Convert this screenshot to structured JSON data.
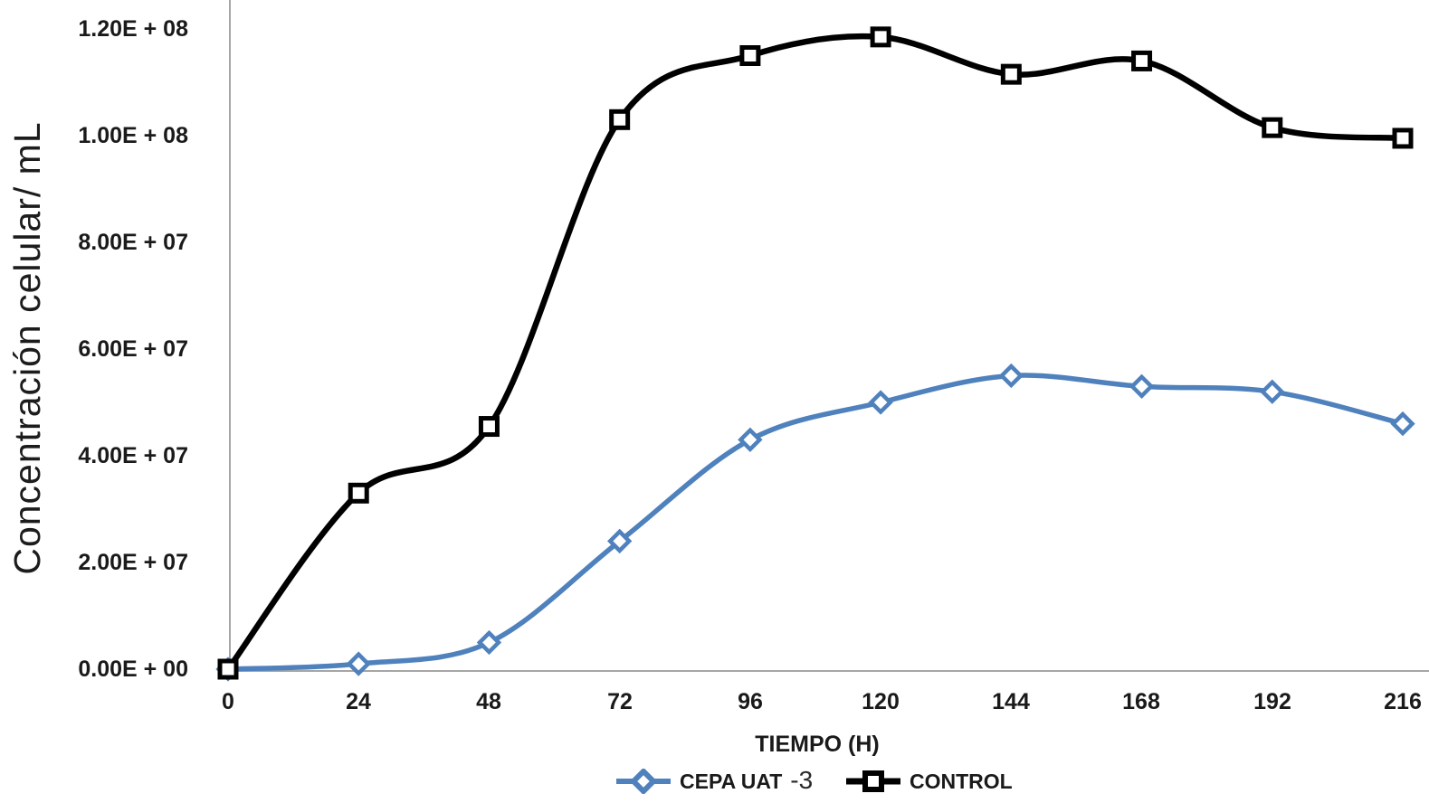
{
  "figure": {
    "background": "#ffffff",
    "text_color": "#1a1a1a"
  },
  "chart_data": {
    "type": "line",
    "title": "",
    "xlabel": "TIEMPO (H)",
    "ylabel": "Concentración celular/ mL",
    "x": [
      0,
      24,
      48,
      72,
      96,
      120,
      144,
      168,
      192,
      216
    ],
    "xtick_labels": [
      "0",
      "24",
      "48",
      "72",
      "96",
      "120",
      "144",
      "168",
      "192",
      "216"
    ],
    "yticks": [
      0,
      20000000,
      40000000,
      60000000,
      80000000,
      100000000,
      120000000
    ],
    "ytick_labels": [
      "0.00E + 00",
      "2.00E + 07",
      "4.00E + 07",
      "6.00E + 07",
      "8.00E + 07",
      "1.00E + 08",
      "1.20E + 08"
    ],
    "ylim": [
      0,
      125000000
    ],
    "xlim": [
      0,
      216
    ],
    "grid": false,
    "smooth_lines": true,
    "legend_position": "bottom-center",
    "axis_color": "#a6a6a6",
    "series": [
      {
        "name": "CEPA UAT-3",
        "color": "#4f81bd",
        "marker": "diamond",
        "values": [
          0,
          1000000,
          5000000,
          24000000,
          43000000,
          50000000,
          55000000,
          53000000,
          52000000,
          46000000
        ]
      },
      {
        "name": "CONTROL",
        "color": "#000000",
        "marker": "square",
        "values": [
          0,
          33000000,
          45500000,
          103000000,
          115000000,
          118500000,
          111500000,
          114000000,
          101500000,
          99500000
        ]
      }
    ]
  },
  "legend": {
    "items": [
      {
        "label_main": "CEPA UAT",
        "label_suffix": "-3",
        "marker": "diamond",
        "color": "#4f81bd"
      },
      {
        "label_main": "CONTROL",
        "label_suffix": "",
        "marker": "square",
        "color": "#000000"
      }
    ]
  }
}
